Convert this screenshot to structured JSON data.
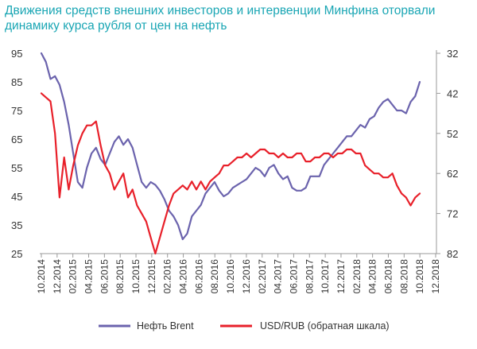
{
  "title": "Движения средств внешних инвесторов и интервенции Минфина оторвали динамику курса рубля от цен на нефть",
  "chart_data": {
    "type": "line",
    "left_axis": {
      "ticks": [
        "95",
        "85",
        "75",
        "65",
        "55",
        "45",
        "35",
        "25"
      ],
      "range": [
        25,
        95
      ]
    },
    "right_axis": {
      "ticks": [
        "32",
        "42",
        "52",
        "62",
        "72",
        "82"
      ],
      "range": [
        32,
        82
      ],
      "inverted": true
    },
    "x_ticks": [
      "10.2014",
      "12.2014",
      "02.2015",
      "04.2015",
      "06.2015",
      "08.2015",
      "10.2015",
      "12.2015",
      "02.2016",
      "04.2016",
      "06.2016",
      "08.2016",
      "10.2016",
      "12.2016",
      "02.2017",
      "04.2017",
      "06.2017",
      "08.2017",
      "10.2017",
      "12.2017",
      "02.2018",
      "04.2018",
      "06.2018",
      "08.2018",
      "10.2018",
      "12.2018"
    ],
    "legend_position": "bottom",
    "series": [
      {
        "name": "Нефть Brent",
        "axis": "left",
        "color": "#6b63ad",
        "values": [
          95,
          92,
          86,
          87,
          84,
          78,
          70,
          60,
          50,
          48,
          55,
          60,
          62,
          58,
          56,
          60,
          64,
          66,
          63,
          65,
          62,
          56,
          50,
          48,
          50,
          49,
          47,
          44,
          40,
          38,
          35,
          30,
          32,
          38,
          40,
          42,
          46,
          48,
          50,
          47,
          45,
          46,
          48,
          49,
          50,
          51,
          53,
          55,
          54,
          52,
          55,
          56,
          53,
          51,
          52,
          48,
          47,
          47,
          48,
          52,
          52,
          52,
          56,
          58,
          60,
          62,
          64,
          66,
          66,
          68,
          70,
          69,
          72,
          73,
          76,
          78,
          79,
          77,
          75,
          75,
          74,
          78,
          80,
          85
        ]
      },
      {
        "name": "USD/RUB (обратная шкала)",
        "axis": "right",
        "color": "#e8202a",
        "values": [
          42,
          43,
          44,
          52,
          68,
          58,
          66,
          60,
          55,
          52,
          50,
          50,
          49,
          55,
          60,
          62,
          66,
          64,
          62,
          68,
          66,
          70,
          72,
          74,
          78,
          82,
          78,
          74,
          70,
          67,
          66,
          65,
          66,
          64,
          66,
          64,
          66,
          64,
          63,
          62,
          60,
          60,
          59,
          58,
          58,
          57,
          58,
          57,
          56,
          56,
          57,
          57,
          58,
          57,
          58,
          58,
          57,
          57,
          59,
          59,
          58,
          58,
          57,
          57,
          58,
          57,
          57,
          56,
          56,
          57,
          57,
          60,
          61,
          62,
          62,
          63,
          63,
          62,
          65,
          67,
          68,
          70,
          68,
          67
        ]
      }
    ]
  }
}
